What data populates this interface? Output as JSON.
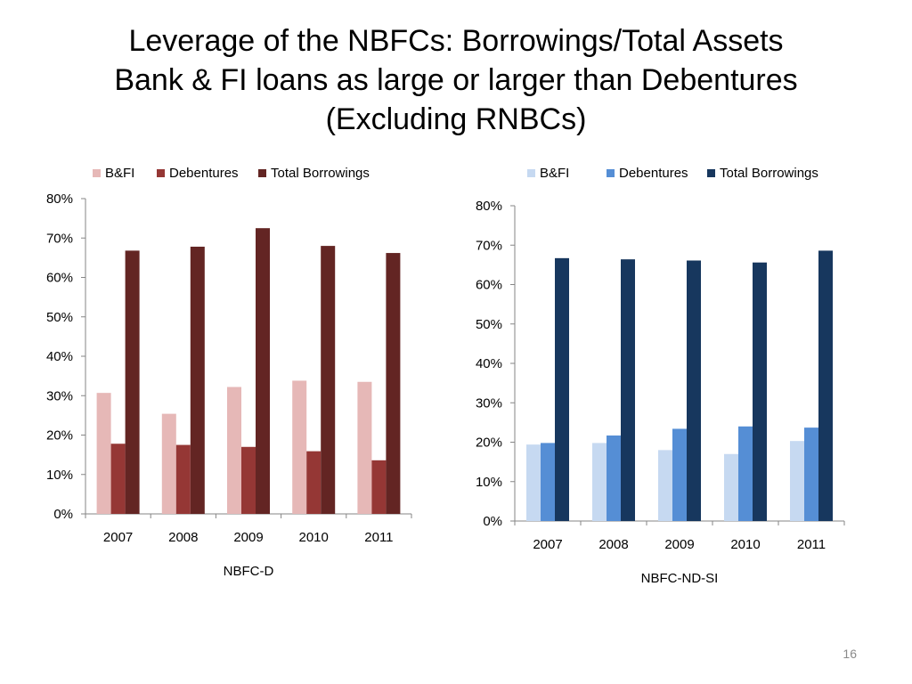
{
  "slide": {
    "title_lines": [
      "Leverage of the NBFCs: Borrowings/Total Assets",
      "Bank & FI loans as large or larger than Debentures",
      "(Excluding RNBCs)"
    ],
    "page_number": "16"
  },
  "chart_data": [
    {
      "type": "bar",
      "xlabel": "NBFC-D",
      "ylabel": "",
      "ylim": [
        0,
        80
      ],
      "ytick_labels": [
        "0%",
        "10%",
        "20%",
        "30%",
        "40%",
        "50%",
        "60%",
        "70%",
        "80%"
      ],
      "categories": [
        "2007",
        "2008",
        "2009",
        "2010",
        "2011"
      ],
      "legend_position": "top",
      "grid": false,
      "series": [
        {
          "name": "B&FI",
          "color": "#e6b8b7",
          "values": [
            30.7,
            25.4,
            32.2,
            33.8,
            33.5
          ]
        },
        {
          "name": "Debentures",
          "color": "#953735",
          "values": [
            17.8,
            17.5,
            17.0,
            15.9,
            13.6
          ]
        },
        {
          "name": "Total Borrowings",
          "color": "#632523",
          "values": [
            66.8,
            67.8,
            72.5,
            68.0,
            66.2
          ]
        }
      ]
    },
    {
      "type": "bar",
      "xlabel": "NBFC-ND-SI",
      "ylabel": "",
      "ylim": [
        0,
        80
      ],
      "ytick_labels": [
        "0%",
        "10%",
        "20%",
        "30%",
        "40%",
        "50%",
        "60%",
        "70%",
        "80%"
      ],
      "categories": [
        "2007",
        "2008",
        "2009",
        "2010",
        "2011"
      ],
      "legend_position": "top",
      "grid": false,
      "series": [
        {
          "name": "B&FI",
          "color": "#c6d9f1",
          "values": [
            19.4,
            19.8,
            18.0,
            17.0,
            20.3
          ]
        },
        {
          "name": "Debentures",
          "color": "#558ed5",
          "values": [
            19.8,
            21.7,
            23.4,
            24.0,
            23.7
          ]
        },
        {
          "name": "Total Borrowings",
          "color": "#17375e",
          "values": [
            66.7,
            66.4,
            66.1,
            65.6,
            68.6
          ]
        }
      ]
    }
  ]
}
